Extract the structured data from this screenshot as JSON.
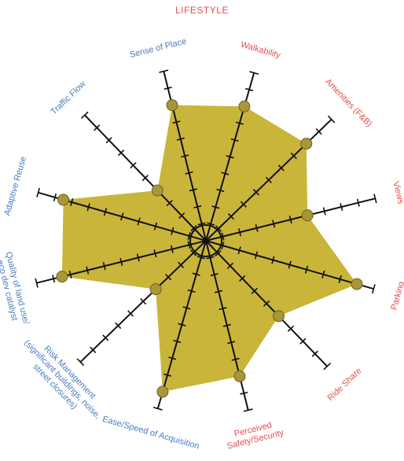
{
  "chart_data": {
    "type": "radar",
    "title": "LIFESTYLE",
    "axes": [
      {
        "label": "Walkability",
        "value": 8.0,
        "group": "lifestyle"
      },
      {
        "label": "Amenities (F&B)",
        "value": 8.0,
        "group": "lifestyle"
      },
      {
        "label": "Views",
        "value": 6.0,
        "group": "lifestyle"
      },
      {
        "label": "Parking",
        "value": 9.0,
        "group": "lifestyle"
      },
      {
        "label": "Ride Share",
        "value": 6.0,
        "group": "lifestyle"
      },
      {
        "label": "Perceived\nSafety/Security",
        "value": 8.0,
        "group": "lifestyle"
      },
      {
        "label": "Ease/Speed of Acquisition",
        "value": 9.0,
        "group": "other"
      },
      {
        "label": "Risk Management\n(significant buildings, noise,\nstreet closures)",
        "value": 4.0,
        "group": "other"
      },
      {
        "label": "Quality of land use/\neco dev catalyst",
        "value": 8.5,
        "group": "other"
      },
      {
        "label": "Adaptive Reuse",
        "value": 8.5,
        "group": "other"
      },
      {
        "label": "Traffic Flow",
        "value": 4.0,
        "group": "other"
      },
      {
        "label": "Sense of Place",
        "value": 8.0,
        "group": "other"
      }
    ],
    "scale_max": 10,
    "tick_count": 10,
    "fill_color": "#c9b53a",
    "point_color": "#a8963a",
    "axis_color": "#111111",
    "lifestyle_label_color": "#e0504f",
    "other_label_color": "#4a7cc0",
    "title_color": "#e0504f"
  }
}
